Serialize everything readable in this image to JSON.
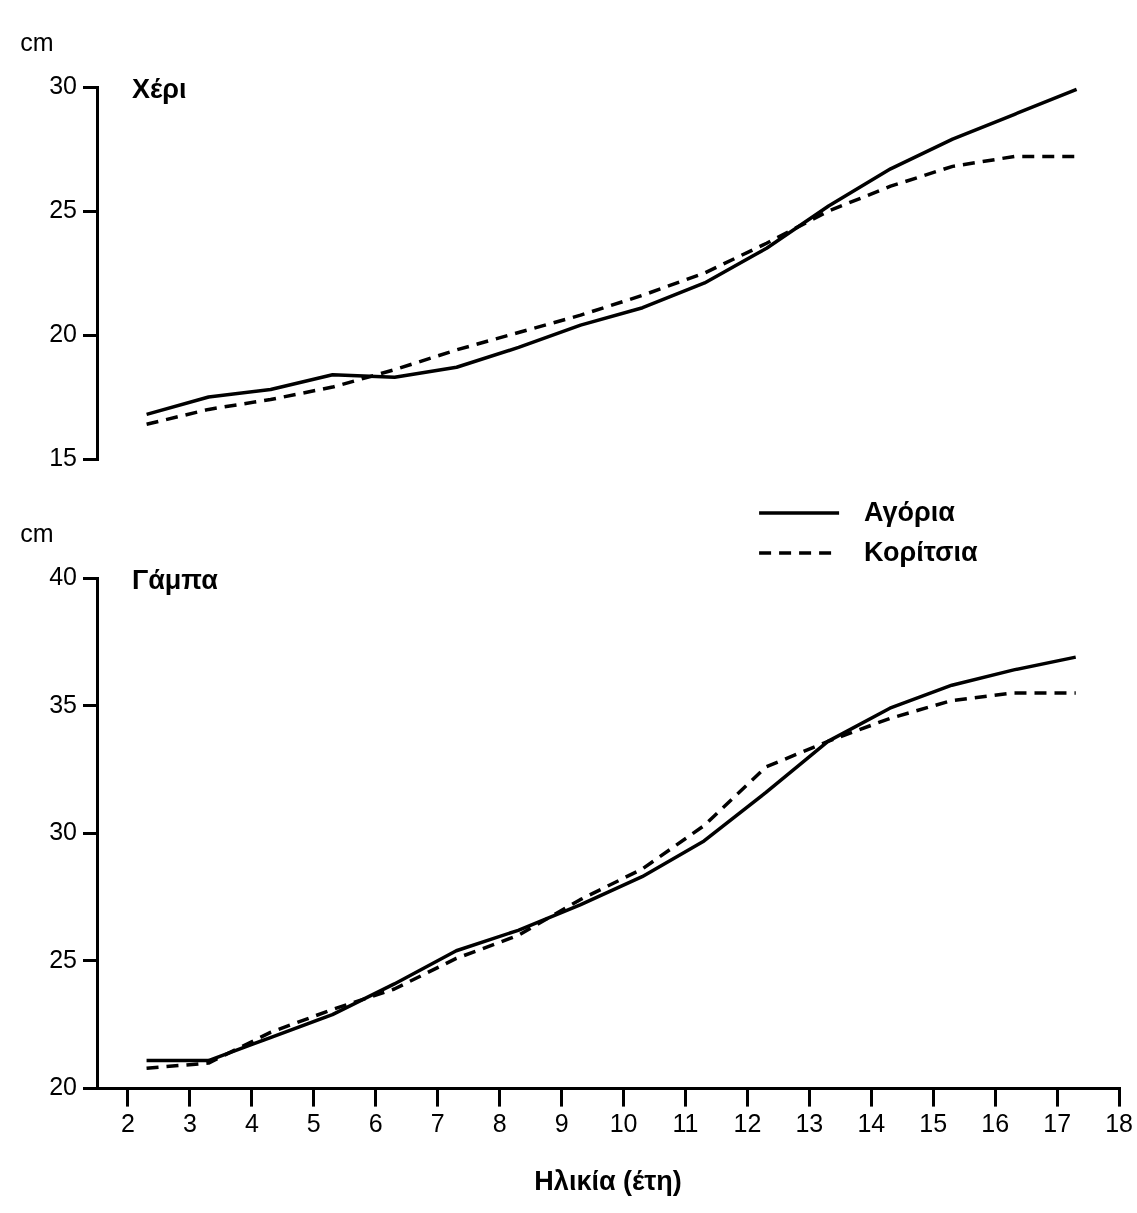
{
  "chart_data": [
    {
      "type": "line",
      "title": "Χέρι",
      "ylabel": "cm",
      "x": [
        2.3,
        3.3,
        4.3,
        5.3,
        6.3,
        7.3,
        8.3,
        9.3,
        10.3,
        11.3,
        12.3,
        13.3,
        14.3,
        15.3,
        16.3,
        17.3
      ],
      "xlim": [
        1.5,
        18
      ],
      "ylim": [
        15,
        30
      ],
      "yticks": [
        15,
        20,
        25,
        30
      ],
      "tick_labels": "y",
      "grid": false,
      "legend": false,
      "marker": "none",
      "series": [
        {
          "color": "#000000",
          "line_style": "solid",
          "values": [
            16.8,
            17.5,
            17.8,
            18.4,
            18.3,
            18.7,
            19.5,
            20.4,
            21.1,
            22.1,
            23.5,
            25.2,
            26.7,
            27.9,
            28.9,
            29.9
          ]
        },
        {
          "color": "#000000",
          "line_style": "dashed",
          "values": [
            16.4,
            17.0,
            17.4,
            17.9,
            18.6,
            19.4,
            20.1,
            20.8,
            21.6,
            22.5,
            23.7,
            25.0,
            26.0,
            26.8,
            27.2,
            27.2
          ]
        }
      ]
    },
    {
      "type": "line",
      "title": "Γάμπα",
      "ylabel": "cm",
      "xlabel": "Ηλικία (έτη)",
      "x": [
        2.3,
        3.3,
        4.3,
        5.3,
        6.3,
        7.3,
        8.3,
        9.3,
        10.3,
        11.3,
        12.3,
        13.3,
        14.3,
        15.3,
        16.3,
        17.3
      ],
      "xlim": [
        1.5,
        18
      ],
      "xticks": [
        2,
        3,
        4,
        5,
        6,
        7,
        8,
        9,
        10,
        11,
        12,
        13,
        14,
        15,
        16,
        17,
        18
      ],
      "ylim": [
        20,
        40
      ],
      "yticks": [
        20,
        25,
        30,
        35,
        40
      ],
      "grid": false,
      "legend": "top right",
      "marker": "none",
      "series": [
        {
          "name": "Αγόρια",
          "color": "#000000",
          "line_style": "solid",
          "values": [
            21.1,
            21.1,
            22.0,
            22.9,
            24.1,
            25.4,
            26.2,
            27.2,
            28.3,
            29.7,
            31.6,
            33.6,
            34.9,
            35.8,
            36.4,
            36.9
          ]
        },
        {
          "name": "Κορίτσια",
          "color": "#000000",
          "line_style": "dashed",
          "values": [
            20.8,
            21.0,
            22.2,
            23.1,
            23.9,
            25.1,
            26.0,
            27.4,
            28.6,
            30.3,
            32.6,
            33.6,
            34.5,
            35.2,
            35.5,
            35.5
          ]
        }
      ]
    }
  ]
}
